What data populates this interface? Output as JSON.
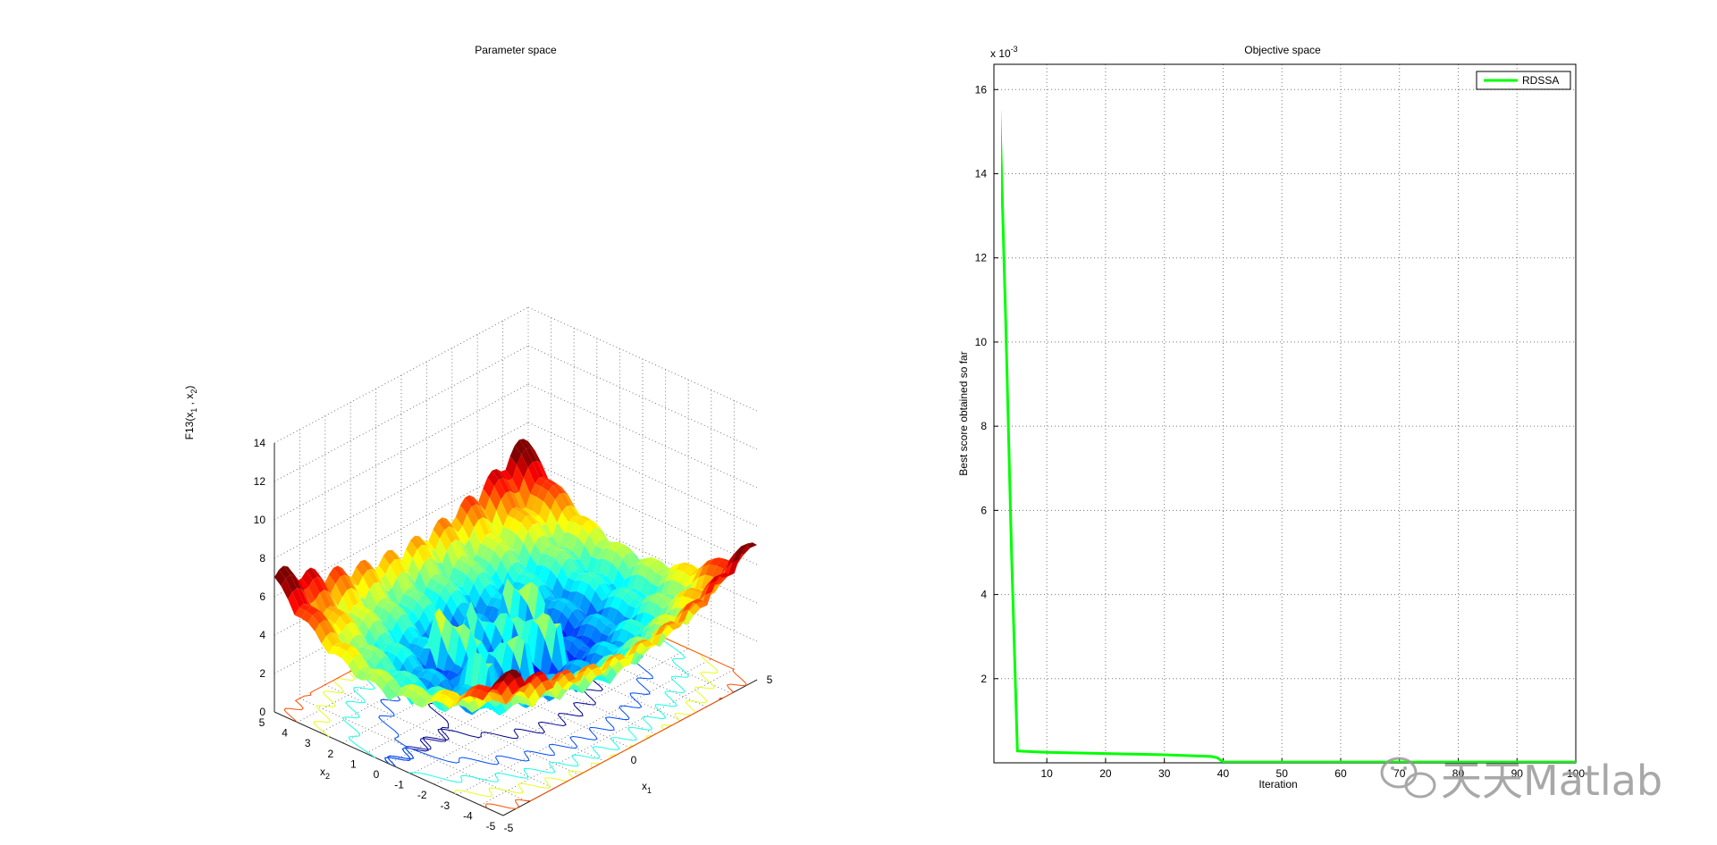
{
  "figure": {
    "left_panel": {
      "title": "Parameter space",
      "xlabel": "x",
      "xlabel_sub": "1",
      "ylabel": "x",
      "ylabel_sub": "2",
      "zlabel_prefix": "F13(",
      "zlabel_x": "x",
      "zlabel_x_sub": "1",
      "zlabel_sep": " , ",
      "zlabel_y": "x",
      "zlabel_y_sub": "2",
      "zlabel_suffix": ")",
      "x_ticks": [
        "0",
        "5"
      ],
      "y_ticks": [
        "5",
        "4",
        "3",
        "2",
        "1",
        "0",
        "-1",
        "-2",
        "-3",
        "-4",
        "-5"
      ],
      "y_extra_tick": "-5",
      "z_ticks": [
        "0",
        "2",
        "4",
        "6",
        "8",
        "10",
        "12",
        "14"
      ],
      "colormap": [
        "#00008f",
        "#0000ff",
        "#0080ff",
        "#00ffff",
        "#80ff80",
        "#ffff00",
        "#ff8000",
        "#ff0000",
        "#800000"
      ]
    },
    "right_panel": {
      "title": "Objective space",
      "xlabel": "Iteration",
      "ylabel": "Best score obtained so far",
      "exponent_base": "x 10",
      "exponent_power": "-3",
      "x_ticks": [
        "10",
        "20",
        "30",
        "40",
        "50",
        "60",
        "70",
        "80",
        "90",
        "100"
      ],
      "y_ticks": [
        "2",
        "4",
        "6",
        "8",
        "10",
        "12",
        "14",
        "16"
      ]
    },
    "watermark": {
      "text": "天天Matlab"
    }
  },
  "chart_data": [
    {
      "type": "surface",
      "title": "Parameter space",
      "xlabel": "x1",
      "ylabel": "x2",
      "zlabel": "F13( x1 , x2 )",
      "xlim": [
        -5,
        5
      ],
      "ylim": [
        -5,
        5
      ],
      "zlim": [
        0,
        14
      ],
      "grid": true,
      "colormap": "jet",
      "contour_on_floor": true
    },
    {
      "type": "line",
      "title": "Objective space",
      "xlabel": "Iteration",
      "ylabel": "Best score obtained so far",
      "y_scale_factor": "x 10^-3",
      "xlim": [
        1,
        100
      ],
      "ylim": [
        0,
        16.6
      ],
      "grid": true,
      "legend_position": "top-right",
      "series": [
        {
          "name": "RDSSA",
          "color": "#00ff00",
          "x": [
            1,
            2,
            3,
            4,
            5,
            10,
            20,
            30,
            38,
            39,
            40,
            50,
            60,
            70,
            80,
            90,
            100
          ],
          "y": [
            16.6,
            15.5,
            10.5,
            5.0,
            0.28,
            0.25,
            0.22,
            0.19,
            0.15,
            0.12,
            0.02,
            0.02,
            0.02,
            0.02,
            0.02,
            0.02,
            0.02
          ]
        }
      ]
    }
  ]
}
